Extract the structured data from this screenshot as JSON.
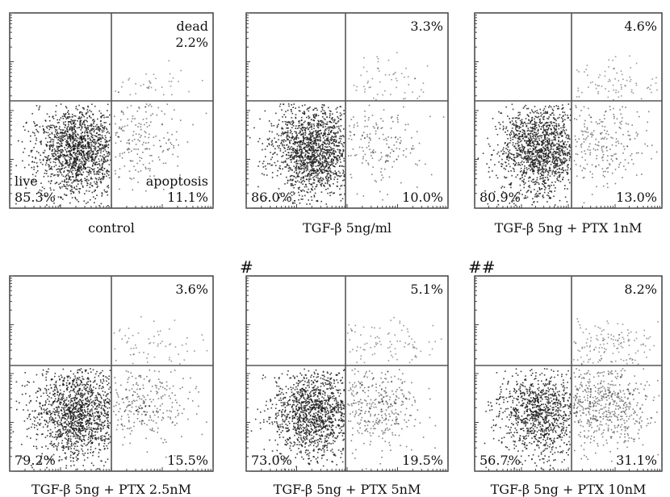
{
  "chart_data": [
    {
      "type": "scatter",
      "xlabel": "control",
      "significance": "",
      "quadrants": {
        "top_left": "",
        "top_right": "dead\n2.2%",
        "bottom_left": "live\n85.3%",
        "bottom_right": "apoptosis\n11.1%"
      },
      "values": {
        "live": 85.3,
        "apoptosis": 11.1,
        "dead": 2.2
      }
    },
    {
      "type": "scatter",
      "xlabel": "TGF-β 5ng/ml",
      "significance": "",
      "quadrants": {
        "top_left": "",
        "top_right": "3.3%",
        "bottom_left": "86.0%",
        "bottom_right": "10.0%"
      },
      "values": {
        "live": 86.0,
        "apoptosis": 10.0,
        "dead": 3.3
      }
    },
    {
      "type": "scatter",
      "xlabel": "TGF-β 5ng + PTX 1nM",
      "significance": "",
      "quadrants": {
        "top_left": "",
        "top_right": "4.6%",
        "bottom_left": "80.9%",
        "bottom_right": "13.0%"
      },
      "values": {
        "live": 80.9,
        "apoptosis": 13.0,
        "dead": 4.6
      }
    },
    {
      "type": "scatter",
      "xlabel": "TGF-β 5ng + PTX 2.5nM",
      "significance": "",
      "quadrants": {
        "top_left": "",
        "top_right": "3.6%",
        "bottom_left": "79.2%",
        "bottom_right": "15.5%"
      },
      "values": {
        "live": 79.2,
        "apoptosis": 15.5,
        "dead": 3.6
      }
    },
    {
      "type": "scatter",
      "xlabel": "TGF-β 5ng + PTX 5nM",
      "significance": "#",
      "quadrants": {
        "top_left": "",
        "top_right": "5.1%",
        "bottom_left": "73.0%",
        "bottom_right": "19.5%"
      },
      "values": {
        "live": 73.0,
        "apoptosis": 19.5,
        "dead": 5.1
      }
    },
    {
      "type": "scatter",
      "xlabel": "TGF-β 5ng + PTX 10nM",
      "significance": "##",
      "quadrants": {
        "top_left": "",
        "top_right": "8.2%",
        "bottom_left": "56.7%",
        "bottom_right": "31.1%"
      },
      "values": {
        "live": 56.7,
        "apoptosis": 31.1,
        "dead": 8.2
      }
    }
  ]
}
